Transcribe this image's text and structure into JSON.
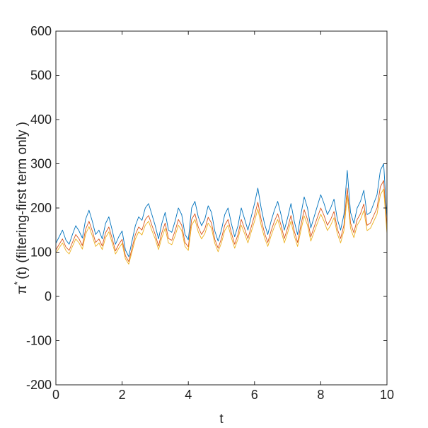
{
  "chart_data": {
    "type": "line",
    "title": "",
    "xlabel": "t",
    "ylabel_symbol": "π",
    "ylabel_superscript": "*",
    "ylabel_rest": "(t)  (filtering-first term only )",
    "xlim": [
      0,
      10
    ],
    "ylim": [
      -200,
      600
    ],
    "x_ticks": [
      0,
      2,
      4,
      6,
      8,
      10
    ],
    "y_ticks": [
      -200,
      -100,
      0,
      100,
      200,
      300,
      400,
      500,
      600
    ],
    "x_tick_labels": [
      "0",
      "2",
      "4",
      "6",
      "8",
      "10"
    ],
    "y_tick_labels": [
      "-200",
      "-100",
      "0",
      "100",
      "200",
      "300",
      "400",
      "500",
      "600"
    ],
    "grid": false,
    "legend": "none",
    "series": [
      {
        "color": "#0072BD",
        "x": [
          0,
          0.1,
          0.2,
          0.3,
          0.4,
          0.5,
          0.6,
          0.7,
          0.8,
          0.9,
          1.0,
          1.1,
          1.2,
          1.3,
          1.4,
          1.5,
          1.6,
          1.7,
          1.8,
          1.9,
          2.0,
          2.1,
          2.2,
          2.3,
          2.4,
          2.5,
          2.6,
          2.7,
          2.8,
          2.9,
          3.0,
          3.1,
          3.2,
          3.3,
          3.4,
          3.5,
          3.6,
          3.7,
          3.8,
          3.9,
          4.0,
          4.1,
          4.2,
          4.3,
          4.4,
          4.5,
          4.6,
          4.7,
          4.8,
          4.9,
          5.0,
          5.1,
          5.2,
          5.3,
          5.4,
          5.5,
          5.6,
          5.7,
          5.8,
          5.9,
          6.0,
          6.1,
          6.2,
          6.3,
          6.4,
          6.5,
          6.6,
          6.7,
          6.8,
          6.9,
          7.0,
          7.1,
          7.2,
          7.3,
          7.4,
          7.5,
          7.6,
          7.7,
          7.8,
          7.9,
          8.0,
          8.1,
          8.2,
          8.3,
          8.4,
          8.5,
          8.6,
          8.7,
          8.8,
          8.9,
          9.0,
          9.1,
          9.2,
          9.3,
          9.4,
          9.5,
          9.6,
          9.7,
          9.8,
          9.9,
          10.0
        ],
        "values": [
          120,
          135,
          150,
          128,
          118,
          140,
          160,
          148,
          132,
          175,
          195,
          170,
          140,
          150,
          130,
          165,
          180,
          150,
          118,
          135,
          148,
          105,
          90,
          125,
          160,
          180,
          172,
          200,
          210,
          185,
          160,
          130,
          165,
          190,
          150,
          145,
          170,
          200,
          185,
          140,
          128,
          200,
          215,
          180,
          160,
          175,
          205,
          190,
          148,
          125,
          150,
          185,
          200,
          165,
          135,
          160,
          200,
          175,
          150,
          180,
          210,
          245,
          200,
          165,
          140,
          170,
          195,
          215,
          185,
          150,
          178,
          210,
          170,
          140,
          185,
          225,
          200,
          155,
          180,
          205,
          230,
          210,
          185,
          200,
          220,
          175,
          150,
          185,
          285,
          190,
          165,
          200,
          215,
          240,
          185,
          190,
          210,
          230,
          285,
          300,
          175
        ]
      },
      {
        "color": "#D95319",
        "x": [
          0,
          0.1,
          0.2,
          0.3,
          0.4,
          0.5,
          0.6,
          0.7,
          0.8,
          0.9,
          1.0,
          1.1,
          1.2,
          1.3,
          1.4,
          1.5,
          1.6,
          1.7,
          1.8,
          1.9,
          2.0,
          2.1,
          2.2,
          2.3,
          2.4,
          2.5,
          2.6,
          2.7,
          2.8,
          2.9,
          3.0,
          3.1,
          3.2,
          3.3,
          3.4,
          3.5,
          3.6,
          3.7,
          3.8,
          3.9,
          4.0,
          4.1,
          4.2,
          4.3,
          4.4,
          4.5,
          4.6,
          4.7,
          4.8,
          4.9,
          5.0,
          5.1,
          5.2,
          5.3,
          5.4,
          5.5,
          5.6,
          5.7,
          5.8,
          5.9,
          6.0,
          6.1,
          6.2,
          6.3,
          6.4,
          6.5,
          6.6,
          6.7,
          6.8,
          6.9,
          7.0,
          7.1,
          7.2,
          7.3,
          7.4,
          7.5,
          7.6,
          7.7,
          7.8,
          7.9,
          8.0,
          8.1,
          8.2,
          8.3,
          8.4,
          8.5,
          8.6,
          8.7,
          8.8,
          8.9,
          9.0,
          9.1,
          9.2,
          9.3,
          9.4,
          9.5,
          9.6,
          9.7,
          9.8,
          9.9,
          10.0
        ],
        "values": [
          105,
          118,
          130,
          112,
          104,
          122,
          140,
          130,
          115,
          152,
          170,
          148,
          122,
          130,
          114,
          144,
          157,
          131,
          103,
          118,
          129,
          92,
          79,
          109,
          140,
          157,
          150,
          174,
          183,
          161,
          140,
          114,
          144,
          166,
          131,
          127,
          148,
          174,
          161,
          122,
          112,
          174,
          187,
          157,
          140,
          153,
          179,
          166,
          129,
          109,
          131,
          161,
          174,
          144,
          118,
          140,
          174,
          153,
          131,
          157,
          183,
          213,
          174,
          144,
          122,
          148,
          170,
          187,
          161,
          131,
          155,
          183,
          148,
          122,
          161,
          196,
          174,
          135,
          157,
          179,
          200,
          183,
          161,
          174,
          192,
          153,
          131,
          161,
          245,
          166,
          144,
          174,
          187,
          209,
          161,
          166,
          183,
          200,
          248,
          262,
          153
        ]
      },
      {
        "color": "#EDB120",
        "x": [
          0,
          0.1,
          0.2,
          0.3,
          0.4,
          0.5,
          0.6,
          0.7,
          0.8,
          0.9,
          1.0,
          1.1,
          1.2,
          1.3,
          1.4,
          1.5,
          1.6,
          1.7,
          1.8,
          1.9,
          2.0,
          2.1,
          2.2,
          2.3,
          2.4,
          2.5,
          2.6,
          2.7,
          2.8,
          2.9,
          3.0,
          3.1,
          3.2,
          3.3,
          3.4,
          3.5,
          3.6,
          3.7,
          3.8,
          3.9,
          4.0,
          4.1,
          4.2,
          4.3,
          4.4,
          4.5,
          4.6,
          4.7,
          4.8,
          4.9,
          5.0,
          5.1,
          5.2,
          5.3,
          5.4,
          5.5,
          5.6,
          5.7,
          5.8,
          5.9,
          6.0,
          6.1,
          6.2,
          6.3,
          6.4,
          6.5,
          6.6,
          6.7,
          6.8,
          6.9,
          7.0,
          7.1,
          7.2,
          7.3,
          7.4,
          7.5,
          7.6,
          7.7,
          7.8,
          7.9,
          8.0,
          8.1,
          8.2,
          8.3,
          8.4,
          8.5,
          8.6,
          8.7,
          8.8,
          8.9,
          9.0,
          9.1,
          9.2,
          9.3,
          9.4,
          9.5,
          9.6,
          9.7,
          9.8,
          9.9,
          10.0
        ],
        "values": [
          98,
          110,
          121,
          104,
          96,
          113,
          130,
          121,
          107,
          141,
          158,
          137,
          113,
          121,
          106,
          133,
          146,
          121,
          96,
          109,
          120,
          85,
          73,
          101,
          130,
          146,
          139,
          161,
          170,
          149,
          130,
          106,
          133,
          154,
          121,
          117,
          137,
          161,
          149,
          113,
          104,
          161,
          174,
          146,
          130,
          142,
          166,
          154,
          120,
          101,
          121,
          149,
          161,
          133,
          109,
          130,
          161,
          142,
          121,
          146,
          170,
          198,
          161,
          133,
          113,
          137,
          158,
          174,
          149,
          121,
          144,
          170,
          137,
          113,
          149,
          182,
          161,
          125,
          146,
          166,
          186,
          170,
          149,
          161,
          178,
          142,
          121,
          149,
          228,
          154,
          133,
          161,
          174,
          194,
          149,
          154,
          170,
          186,
          230,
          243,
          142
        ]
      }
    ]
  }
}
